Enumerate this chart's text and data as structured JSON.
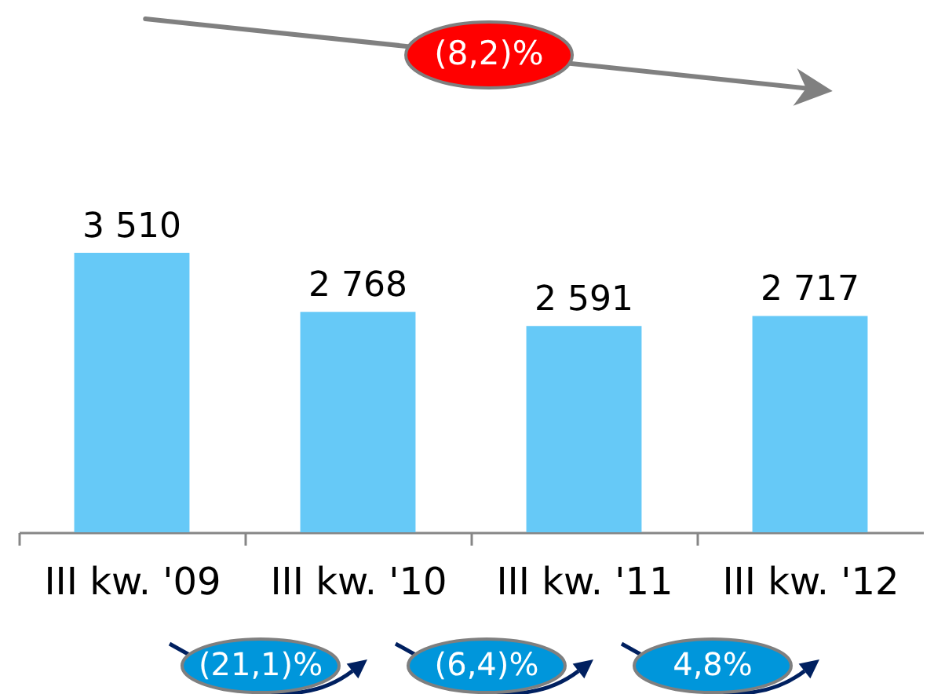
{
  "chart_data": {
    "type": "bar",
    "categories": [
      "III kw. '09",
      "III kw. '10",
      "III kw. '11",
      "III kw. '12"
    ],
    "values": [
      3510,
      2768,
      2591,
      2717
    ],
    "value_labels": [
      "3 510",
      "2 768",
      "2 591",
      "2 717"
    ],
    "color": "#66c9f7",
    "annotations": [
      "(8,2)%",
      "(21,1)%",
      "(6,4)%",
      "4,8%"
    ]
  }
}
